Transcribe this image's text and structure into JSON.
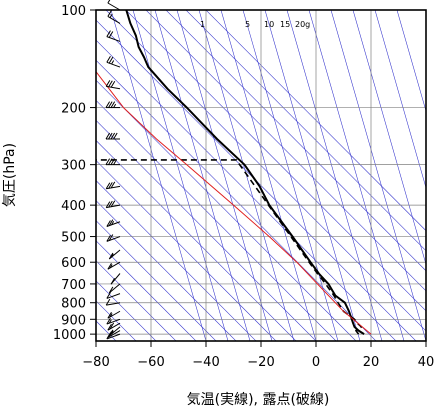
{
  "chart_data": {
    "type": "line",
    "xlabel": "気温(実線), 露点(破線)",
    "ylabel": "気圧(hPa)",
    "xlim": [
      -80,
      40
    ],
    "ylim": [
      1050,
      100
    ],
    "y_scale": "log",
    "x_ticks": [
      "−80",
      "−60",
      "−40",
      "−20",
      "0",
      "20",
      "40"
    ],
    "y_ticks": [
      {
        "p": 100,
        "label": "100"
      },
      {
        "p": 200,
        "label": "200"
      },
      {
        "p": 300,
        "label": "300"
      },
      {
        "p": 400,
        "label": "400"
      },
      {
        "p": 500,
        "label": "500"
      },
      {
        "p": 600,
        "label": "600"
      },
      {
        "p": 700,
        "label": "700"
      },
      {
        "p": 800,
        "label": "800"
      },
      {
        "p": 900,
        "label": "900"
      },
      {
        "p": 1000,
        "label": "1000"
      }
    ],
    "mixing_ratio_labels": [
      "1",
      "5",
      "10",
      "15",
      "20g"
    ],
    "grid": true,
    "colors": {
      "temperature": "#000000",
      "dewpoint": "#000000",
      "adiabat": "#3232cc",
      "reference": "#e02020",
      "grid": "#808080"
    },
    "series": [
      {
        "role": "temperature",
        "style": "solid",
        "points": [
          {
            "p": 1000,
            "x": 17.5
          },
          {
            "p": 975,
            "x": 15.5
          },
          {
            "p": 950,
            "x": 14.0
          },
          {
            "p": 925,
            "x": 13.5
          },
          {
            "p": 900,
            "x": 13.0
          },
          {
            "p": 875,
            "x": 12.5
          },
          {
            "p": 850,
            "x": 12.0
          },
          {
            "p": 800,
            "x": 10.5
          },
          {
            "p": 760,
            "x": 7.0
          },
          {
            "p": 700,
            "x": 4.5
          },
          {
            "p": 650,
            "x": 1.0
          },
          {
            "p": 600,
            "x": -2.0
          },
          {
            "p": 500,
            "x": -8.5
          },
          {
            "p": 400,
            "x": -17.0
          },
          {
            "p": 350,
            "x": -20.5
          },
          {
            "p": 300,
            "x": -26.0
          },
          {
            "p": 250,
            "x": -36.0
          },
          {
            "p": 200,
            "x": -47.0
          },
          {
            "p": 175,
            "x": -54.0
          },
          {
            "p": 150,
            "x": -61.0
          },
          {
            "p": 140,
            "x": -62.5
          },
          {
            "p": 130,
            "x": -64.5
          },
          {
            "p": 120,
            "x": -65.5
          },
          {
            "p": 110,
            "x": -67.5
          },
          {
            "p": 100,
            "x": -69.0
          }
        ]
      },
      {
        "role": "dewpoint",
        "style": "dashed",
        "points": [
          {
            "p": 1000,
            "x": 15.5
          },
          {
            "p": 975,
            "x": 14.5
          },
          {
            "p": 950,
            "x": 16.5
          },
          {
            "p": 925,
            "x": 15.0
          },
          {
            "p": 900,
            "x": 14.0
          },
          {
            "p": 850,
            "x": 10.0
          },
          {
            "p": 800,
            "x": 8.0
          },
          {
            "p": 760,
            "x": 6.5
          },
          {
            "p": 720,
            "x": 4.5
          },
          {
            "p": 700,
            "x": 3.5
          },
          {
            "p": 650,
            "x": 0.5
          },
          {
            "p": 600,
            "x": -2.5
          },
          {
            "p": 290,
            "x": -29.0
          },
          {
            "p": 290,
            "x": -80.0
          }
        ]
      },
      {
        "role": "reference",
        "style": "solid",
        "points": [
          {
            "p": 1000,
            "x": 20.0
          },
          {
            "p": 850,
            "x": 10.0
          },
          {
            "p": 700,
            "x": 0.5
          },
          {
            "p": 600,
            "x": -7.0
          },
          {
            "p": 500,
            "x": -17.0
          },
          {
            "p": 400,
            "x": -30.0
          },
          {
            "p": 300,
            "x": -47.0
          },
          {
            "p": 250,
            "x": -58.0
          },
          {
            "p": 200,
            "x": -70.0
          },
          {
            "p": 155,
            "x": -80.0
          }
        ]
      }
    ],
    "wind_barbs": [
      {
        "p": 1000,
        "dir": 250,
        "speed": 10
      },
      {
        "p": 975,
        "dir": 240,
        "speed": 10
      },
      {
        "p": 950,
        "dir": 230,
        "speed": 15
      },
      {
        "p": 925,
        "dir": 240,
        "speed": 20
      },
      {
        "p": 900,
        "dir": 250,
        "speed": 15
      },
      {
        "p": 850,
        "dir": 240,
        "speed": 15
      },
      {
        "p": 800,
        "dir": 260,
        "speed": 10
      },
      {
        "p": 750,
        "dir": 250,
        "speed": 10
      },
      {
        "p": 700,
        "dir": 230,
        "speed": 10
      },
      {
        "p": 650,
        "dir": 220,
        "speed": 10
      },
      {
        "p": 600,
        "dir": 240,
        "speed": 15
      },
      {
        "p": 550,
        "dir": 230,
        "speed": 15
      },
      {
        "p": 500,
        "dir": 250,
        "speed": 20
      },
      {
        "p": 450,
        "dir": 250,
        "speed": 25
      },
      {
        "p": 400,
        "dir": 260,
        "speed": 30
      },
      {
        "p": 350,
        "dir": 260,
        "speed": 30
      },
      {
        "p": 300,
        "dir": 270,
        "speed": 35
      },
      {
        "p": 250,
        "dir": 270,
        "speed": 40
      },
      {
        "p": 200,
        "dir": 270,
        "speed": 35
      },
      {
        "p": 175,
        "dir": 280,
        "speed": 30
      },
      {
        "p": 150,
        "dir": 290,
        "speed": 25
      },
      {
        "p": 125,
        "dir": 290,
        "speed": 20
      },
      {
        "p": 110,
        "dir": 300,
        "speed": 15
      },
      {
        "p": 100,
        "dir": 300,
        "speed": 10
      }
    ]
  }
}
